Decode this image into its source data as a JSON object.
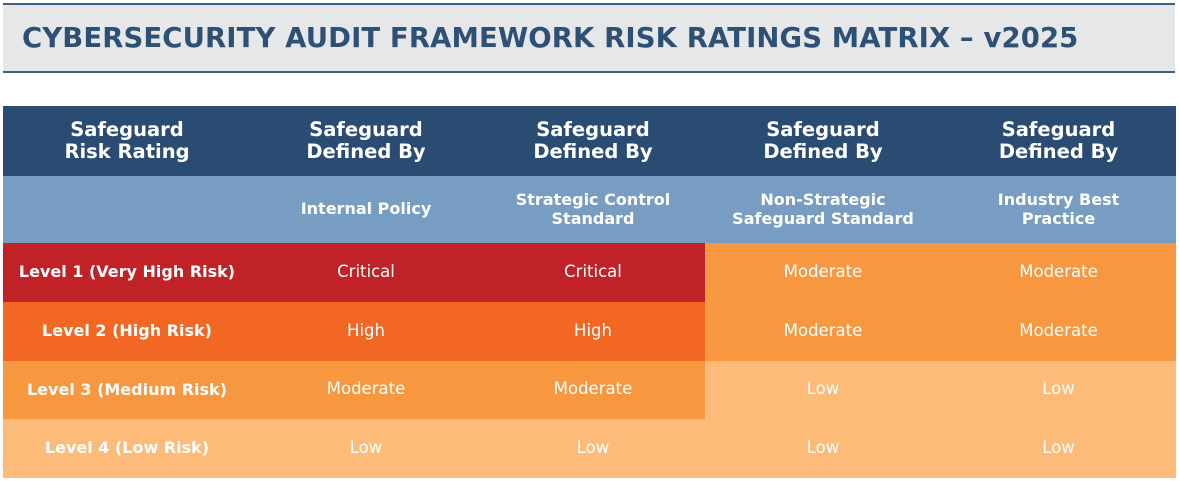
{
  "title": "CYBERSECURITY AUDIT FRAMEWORK RISK RATINGS MATRIX – v2025",
  "colors": {
    "title_text": "#2e5075",
    "title_bg": "#e6e7e9",
    "header_bg": "#2b4c72",
    "subheader_bg": "#789dc2",
    "critical": "#c12227",
    "high": "#f26724",
    "moderate": "#f7973f",
    "low": "#fcbb78"
  },
  "matrix": {
    "headers": [
      "Safeguard\nRisk Rating",
      "Safeguard\nDefined By",
      "Safeguard\nDefined By",
      "Safeguard\nDefined By",
      "Safeguard\nDefined By"
    ],
    "subheaders": [
      "",
      "Internal Policy",
      "Strategic Control\nStandard",
      "Non-Strategic\nSafeguard Standard",
      "Industry Best\nPractice"
    ],
    "rows": [
      {
        "label": "Level 1 (Very High Risk)",
        "cells": [
          "Critical",
          "Critical",
          "Moderate",
          "Moderate"
        ]
      },
      {
        "label": "Level 2 (High Risk)",
        "cells": [
          "High",
          "High",
          "Moderate",
          "Moderate"
        ]
      },
      {
        "label": "Level 3 (Medium Risk)",
        "cells": [
          "Moderate",
          "Moderate",
          "Low",
          "Low"
        ]
      },
      {
        "label": "Level 4 (Low Risk)",
        "cells": [
          "Low",
          "Low",
          "Low",
          "Low"
        ]
      }
    ]
  }
}
